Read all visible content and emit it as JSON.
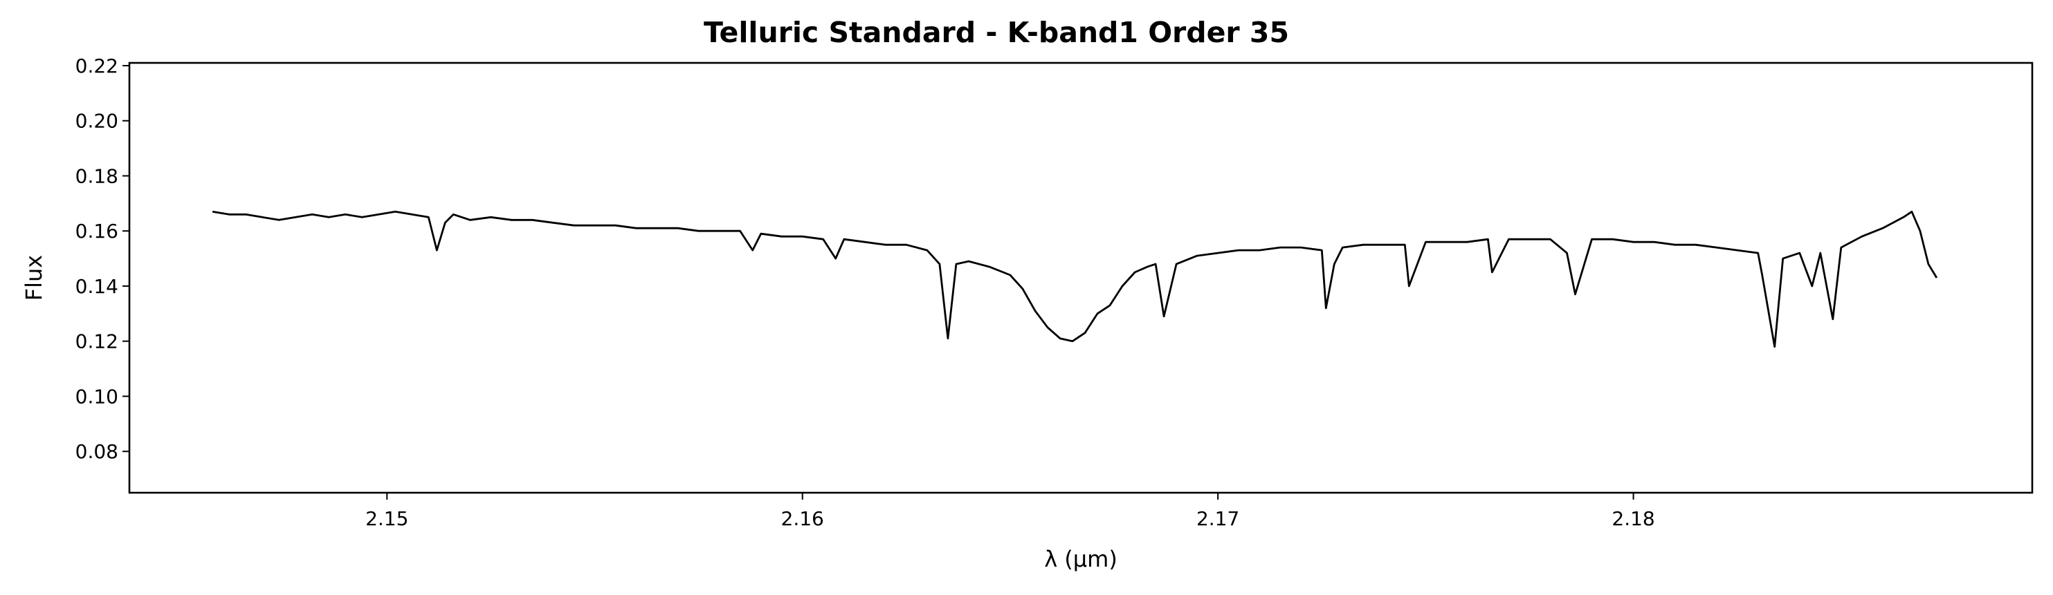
{
  "chart_data": {
    "type": "line",
    "title": "Telluric Standard - K-band1 Order 35",
    "xlabel": "λ (μm)",
    "ylabel": "Flux",
    "xlim": [
      2.1438,
      2.1896
    ],
    "ylim": [
      0.065,
      0.221
    ],
    "xticks": [
      2.15,
      2.16,
      2.17,
      2.18
    ],
    "xtick_labels": [
      "2.15",
      "2.16",
      "2.17",
      "2.18"
    ],
    "yticks": [
      0.08,
      0.1,
      0.12,
      0.14,
      0.16,
      0.18,
      0.2,
      0.22
    ],
    "ytick_labels": [
      "0.08",
      "0.10",
      "0.12",
      "0.14",
      "0.16",
      "0.18",
      "0.20",
      "0.22"
    ],
    "grid": false,
    "series": [
      {
        "color": "#000000",
        "x": [
          2.1458,
          2.1462,
          2.1466,
          2.147,
          2.1474,
          2.1478,
          2.1482,
          2.1486,
          2.149,
          2.1494,
          2.1498,
          2.1502,
          2.1506,
          2.151,
          2.1512,
          2.1514,
          2.1516,
          2.152,
          2.1525,
          2.153,
          2.1535,
          2.154,
          2.1545,
          2.155,
          2.1555,
          2.156,
          2.1565,
          2.157,
          2.1575,
          2.158,
          2.1585,
          2.1588,
          2.159,
          2.1595,
          2.16,
          2.1605,
          2.1608,
          2.161,
          2.1615,
          2.162,
          2.1625,
          2.163,
          2.1633,
          2.1635,
          2.1637,
          2.164,
          2.1645,
          2.165,
          2.1653,
          2.1656,
          2.1659,
          2.1662,
          2.1665,
          2.1668,
          2.1671,
          2.1674,
          2.1677,
          2.168,
          2.1683,
          2.1685,
          2.1687,
          2.169,
          2.1695,
          2.17,
          2.1705,
          2.171,
          2.1715,
          2.172,
          2.1725,
          2.1726,
          2.1728,
          2.173,
          2.1735,
          2.174,
          2.1745,
          2.1746,
          2.175,
          2.1755,
          2.176,
          2.1765,
          2.1766,
          2.177,
          2.1775,
          2.178,
          2.1784,
          2.1786,
          2.179,
          2.1795,
          2.18,
          2.1805,
          2.181,
          2.1815,
          2.182,
          2.1825,
          2.183,
          2.1831,
          2.1834,
          2.1836,
          2.184,
          2.1843,
          2.1845,
          2.1848,
          2.185,
          2.1855,
          2.186,
          2.1865,
          2.1867,
          2.1869,
          2.1871,
          2.1873
        ],
        "values": [
          0.167,
          0.166,
          0.166,
          0.165,
          0.164,
          0.165,
          0.166,
          0.165,
          0.166,
          0.165,
          0.166,
          0.167,
          0.166,
          0.165,
          0.153,
          0.163,
          0.166,
          0.164,
          0.165,
          0.164,
          0.164,
          0.163,
          0.162,
          0.162,
          0.162,
          0.161,
          0.161,
          0.161,
          0.16,
          0.16,
          0.16,
          0.153,
          0.159,
          0.158,
          0.158,
          0.157,
          0.15,
          0.157,
          0.156,
          0.155,
          0.155,
          0.153,
          0.148,
          0.121,
          0.148,
          0.149,
          0.147,
          0.144,
          0.139,
          0.131,
          0.125,
          0.121,
          0.12,
          0.123,
          0.13,
          0.133,
          0.14,
          0.145,
          0.147,
          0.148,
          0.129,
          0.148,
          0.151,
          0.152,
          0.153,
          0.153,
          0.154,
          0.154,
          0.153,
          0.132,
          0.148,
          0.154,
          0.155,
          0.155,
          0.155,
          0.14,
          0.156,
          0.156,
          0.156,
          0.157,
          0.145,
          0.157,
          0.157,
          0.157,
          0.152,
          0.137,
          0.157,
          0.157,
          0.156,
          0.156,
          0.155,
          0.155,
          0.154,
          0.153,
          0.152,
          0.144,
          0.118,
          0.15,
          0.152,
          0.14,
          0.152,
          0.128,
          0.154,
          0.158,
          0.161,
          0.165,
          0.167,
          0.16,
          0.148,
          0.143
        ]
      }
    ]
  }
}
